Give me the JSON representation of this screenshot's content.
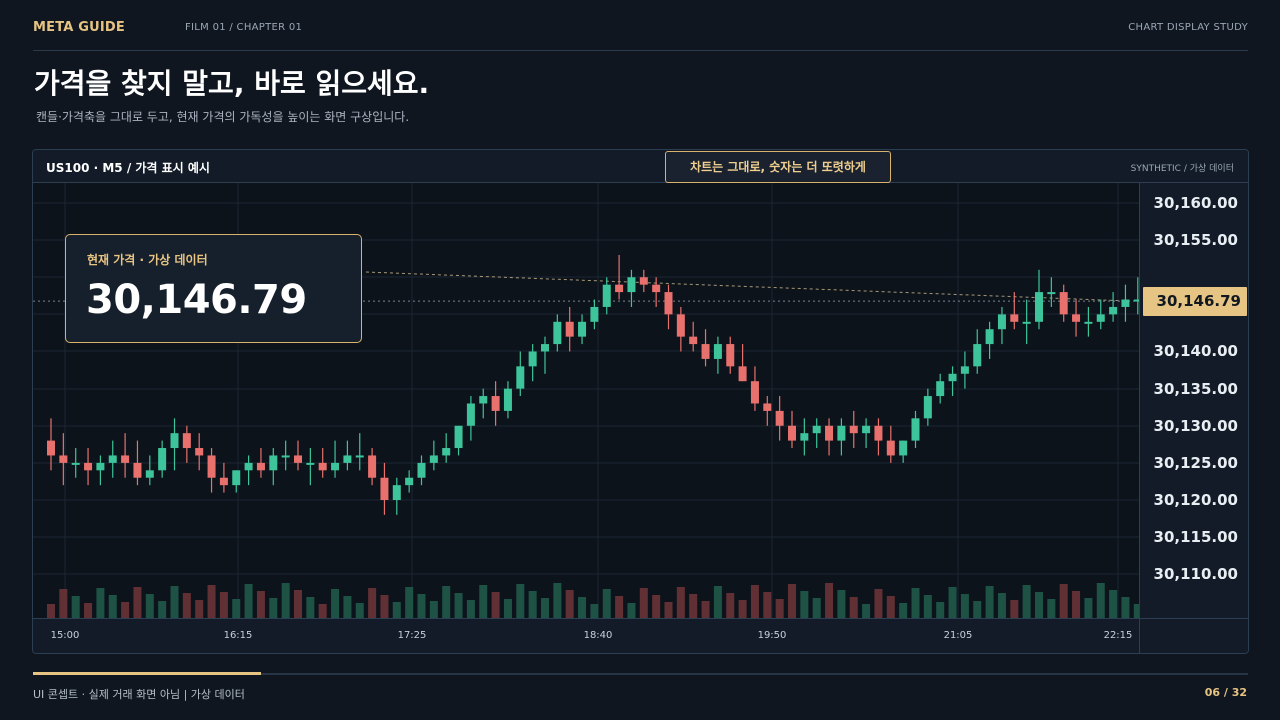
{
  "header": {
    "brand": "META GUIDE",
    "breadcrumb": "FILM 01 / CHAPTER 01",
    "study": "CHART DISPLAY STUDY"
  },
  "headline": "가격을 찾지 말고, 바로 읽으세요.",
  "subheadline": "캔들·가격축을 그대로 두고, 현재 가격의 가독성을 높이는 화면 구상입니다.",
  "panel": {
    "symbol_label": "US100 · M5  /  가격 표시 예시",
    "banner": "차트는 그대로, 숫자는 더 또렷하게",
    "data_source": "SYNTHETIC / 가상 데이터"
  },
  "price_card": {
    "label": "현재 가격 · 가상 데이터",
    "value": "30,146.79"
  },
  "price_axis": {
    "ticks": [
      "30,160.00",
      "30,155.00",
      "30,140.00",
      "30,135.00",
      "30,130.00",
      "30,125.00",
      "30,120.00",
      "30,115.00",
      "30,110.00"
    ],
    "last_price": "30,146.79"
  },
  "time_axis": {
    "ticks": [
      "15:00",
      "16:15",
      "17:25",
      "18:40",
      "19:50",
      "21:05",
      "22:15"
    ]
  },
  "colors": {
    "accent": "#e6c483",
    "up": "#3ec49a",
    "down": "#e8716e",
    "background": "#0f1620"
  },
  "chart_data": {
    "type": "candlestick",
    "title": "US100 · M5",
    "x_ticks": [
      "15:00",
      "16:15",
      "17:25",
      "18:40",
      "19:50",
      "21:05",
      "22:15"
    ],
    "ylim": [
      30107,
      30161
    ],
    "last_price": 30146.79,
    "candles": [
      {
        "o": 30128,
        "h": 30131,
        "l": 30124,
        "c": 30126
      },
      {
        "o": 30126,
        "h": 30129,
        "l": 30122,
        "c": 30125
      },
      {
        "o": 30125,
        "h": 30127,
        "l": 30123,
        "c": 30125
      },
      {
        "o": 30125,
        "h": 30127,
        "l": 30122,
        "c": 30124
      },
      {
        "o": 30124,
        "h": 30126,
        "l": 30122,
        "c": 30125
      },
      {
        "o": 30125,
        "h": 30128,
        "l": 30123,
        "c": 30126
      },
      {
        "o": 30126,
        "h": 30129,
        "l": 30123,
        "c": 30125
      },
      {
        "o": 30125,
        "h": 30128,
        "l": 30122,
        "c": 30123
      },
      {
        "o": 30123,
        "h": 30126,
        "l": 30122,
        "c": 30124
      },
      {
        "o": 30124,
        "h": 30128,
        "l": 30123,
        "c": 30127
      },
      {
        "o": 30127,
        "h": 30131,
        "l": 30124,
        "c": 30129
      },
      {
        "o": 30129,
        "h": 30130,
        "l": 30125,
        "c": 30127
      },
      {
        "o": 30127,
        "h": 30129,
        "l": 30124,
        "c": 30126
      },
      {
        "o": 30126,
        "h": 30127,
        "l": 30121,
        "c": 30123
      },
      {
        "o": 30123,
        "h": 30125,
        "l": 30121,
        "c": 30122
      },
      {
        "o": 30122,
        "h": 30124,
        "l": 30121,
        "c": 30124
      },
      {
        "o": 30124,
        "h": 30126,
        "l": 30122,
        "c": 30125
      },
      {
        "o": 30125,
        "h": 30127,
        "l": 30123,
        "c": 30124
      },
      {
        "o": 30124,
        "h": 30127,
        "l": 30122,
        "c": 30126
      },
      {
        "o": 30126,
        "h": 30128,
        "l": 30124,
        "c": 30126
      },
      {
        "o": 30126,
        "h": 30128,
        "l": 30124,
        "c": 30125
      },
      {
        "o": 30125,
        "h": 30127,
        "l": 30122,
        "c": 30125
      },
      {
        "o": 30125,
        "h": 30127,
        "l": 30123,
        "c": 30124
      },
      {
        "o": 30124,
        "h": 30128,
        "l": 30123,
        "c": 30125
      },
      {
        "o": 30125,
        "h": 30128,
        "l": 30124,
        "c": 30126
      },
      {
        "o": 30126,
        "h": 30129,
        "l": 30124,
        "c": 30126
      },
      {
        "o": 30126,
        "h": 30127,
        "l": 30122,
        "c": 30123
      },
      {
        "o": 30123,
        "h": 30125,
        "l": 30118,
        "c": 30120
      },
      {
        "o": 30120,
        "h": 30123,
        "l": 30118,
        "c": 30122
      },
      {
        "o": 30122,
        "h": 30124,
        "l": 30121,
        "c": 30123
      },
      {
        "o": 30123,
        "h": 30126,
        "l": 30122,
        "c": 30125
      },
      {
        "o": 30125,
        "h": 30128,
        "l": 30124,
        "c": 30126
      },
      {
        "o": 30126,
        "h": 30129,
        "l": 30125,
        "c": 30127
      },
      {
        "o": 30127,
        "h": 30130,
        "l": 30126,
        "c": 30130
      },
      {
        "o": 30130,
        "h": 30134,
        "l": 30128,
        "c": 30133
      },
      {
        "o": 30133,
        "h": 30135,
        "l": 30131,
        "c": 30134
      },
      {
        "o": 30134,
        "h": 30136,
        "l": 30130,
        "c": 30132
      },
      {
        "o": 30132,
        "h": 30136,
        "l": 30131,
        "c": 30135
      },
      {
        "o": 30135,
        "h": 30140,
        "l": 30134,
        "c": 30138
      },
      {
        "o": 30138,
        "h": 30141,
        "l": 30136,
        "c": 30140
      },
      {
        "o": 30140,
        "h": 30142,
        "l": 30137,
        "c": 30141
      },
      {
        "o": 30141,
        "h": 30145,
        "l": 30140,
        "c": 30144
      },
      {
        "o": 30144,
        "h": 30146,
        "l": 30140,
        "c": 30142
      },
      {
        "o": 30142,
        "h": 30145,
        "l": 30141,
        "c": 30144
      },
      {
        "o": 30144,
        "h": 30147,
        "l": 30143,
        "c": 30146
      },
      {
        "o": 30146,
        "h": 30150,
        "l": 30145,
        "c": 30149
      },
      {
        "o": 30149,
        "h": 30153,
        "l": 30147,
        "c": 30148
      },
      {
        "o": 30148,
        "h": 30151,
        "l": 30146,
        "c": 30150
      },
      {
        "o": 30150,
        "h": 30151,
        "l": 30148,
        "c": 30149
      },
      {
        "o": 30149,
        "h": 30150,
        "l": 30146,
        "c": 30148
      },
      {
        "o": 30148,
        "h": 30149,
        "l": 30143,
        "c": 30145
      },
      {
        "o": 30145,
        "h": 30146,
        "l": 30140,
        "c": 30142
      },
      {
        "o": 30142,
        "h": 30144,
        "l": 30140,
        "c": 30141
      },
      {
        "o": 30141,
        "h": 30143,
        "l": 30138,
        "c": 30139
      },
      {
        "o": 30139,
        "h": 30142,
        "l": 30137,
        "c": 30141
      },
      {
        "o": 30141,
        "h": 30142,
        "l": 30137,
        "c": 30138
      },
      {
        "o": 30138,
        "h": 30141,
        "l": 30136,
        "c": 30136
      },
      {
        "o": 30136,
        "h": 30138,
        "l": 30132,
        "c": 30133
      },
      {
        "o": 30133,
        "h": 30134,
        "l": 30130,
        "c": 30132
      },
      {
        "o": 30132,
        "h": 30134,
        "l": 30128,
        "c": 30130
      },
      {
        "o": 30130,
        "h": 30132,
        "l": 30127,
        "c": 30128
      },
      {
        "o": 30128,
        "h": 30131,
        "l": 30126,
        "c": 30129
      },
      {
        "o": 30129,
        "h": 30131,
        "l": 30127,
        "c": 30130
      },
      {
        "o": 30130,
        "h": 30131,
        "l": 30126,
        "c": 30128
      },
      {
        "o": 30128,
        "h": 30131,
        "l": 30126,
        "c": 30130
      },
      {
        "o": 30130,
        "h": 30132,
        "l": 30127,
        "c": 30129
      },
      {
        "o": 30129,
        "h": 30131,
        "l": 30127,
        "c": 30130
      },
      {
        "o": 30130,
        "h": 30131,
        "l": 30126,
        "c": 30128
      },
      {
        "o": 30128,
        "h": 30130,
        "l": 30125,
        "c": 30126
      },
      {
        "o": 30126,
        "h": 30128,
        "l": 30125,
        "c": 30128
      },
      {
        "o": 30128,
        "h": 30132,
        "l": 30127,
        "c": 30131
      },
      {
        "o": 30131,
        "h": 30135,
        "l": 30130,
        "c": 30134
      },
      {
        "o": 30134,
        "h": 30137,
        "l": 30133,
        "c": 30136
      },
      {
        "o": 30136,
        "h": 30138,
        "l": 30134,
        "c": 30137
      },
      {
        "o": 30137,
        "h": 30140,
        "l": 30135,
        "c": 30138
      },
      {
        "o": 30138,
        "h": 30143,
        "l": 30137,
        "c": 30141
      },
      {
        "o": 30141,
        "h": 30144,
        "l": 30139,
        "c": 30143
      },
      {
        "o": 30143,
        "h": 30146,
        "l": 30141,
        "c": 30145
      },
      {
        "o": 30145,
        "h": 30148,
        "l": 30143,
        "c": 30144
      },
      {
        "o": 30144,
        "h": 30147,
        "l": 30141,
        "c": 30144
      },
      {
        "o": 30144,
        "h": 30151,
        "l": 30143,
        "c": 30148
      },
      {
        "o": 30148,
        "h": 30150,
        "l": 30146,
        "c": 30148
      },
      {
        "o": 30148,
        "h": 30149,
        "l": 30144,
        "c": 30145
      },
      {
        "o": 30145,
        "h": 30147,
        "l": 30142,
        "c": 30144
      },
      {
        "o": 30144,
        "h": 30146,
        "l": 30142,
        "c": 30144
      },
      {
        "o": 30144,
        "h": 30147,
        "l": 30143,
        "c": 30145
      },
      {
        "o": 30145,
        "h": 30148,
        "l": 30144,
        "c": 30146
      },
      {
        "o": 30146,
        "h": 30149,
        "l": 30144,
        "c": 30147
      },
      {
        "o": 30147,
        "h": 30150,
        "l": 30145,
        "c": 30147
      },
      {
        "o": 30147,
        "h": 30149,
        "l": 30145,
        "c": 30146
      },
      {
        "o": 30146,
        "h": 30147,
        "l": 30145,
        "c": 30147
      }
    ]
  }
}
